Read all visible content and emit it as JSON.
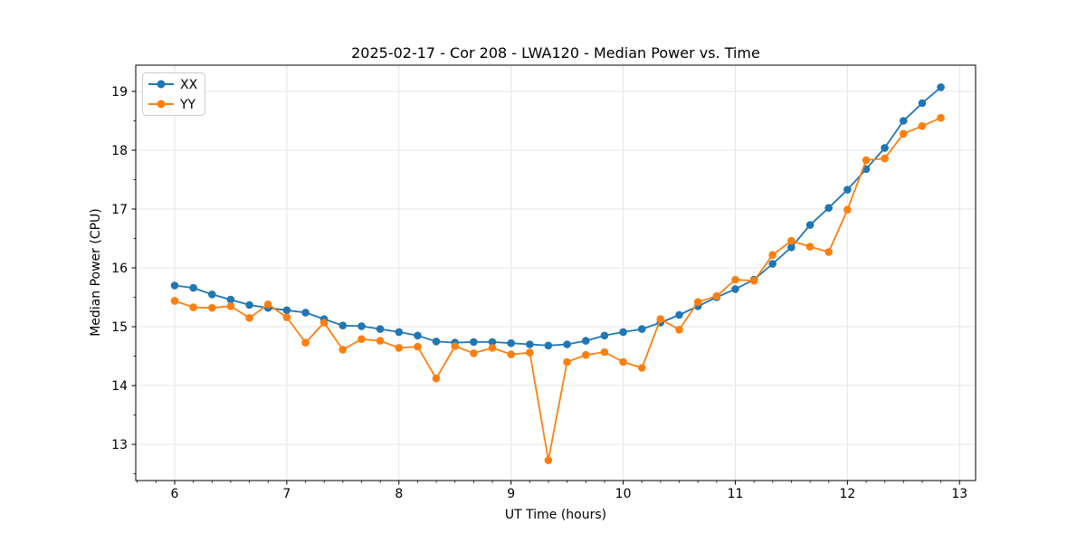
{
  "chart_data": {
    "type": "line",
    "title": "2025-02-17 - Cor 208 - LWA120 - Median Power vs. Time",
    "xlabel": "UT Time (hours)",
    "ylabel": "Median Power (CPU)",
    "xlim": [
      5.653,
      13.143
    ],
    "ylim": [
      12.385,
      19.446
    ],
    "xticks": [
      6,
      7,
      8,
      9,
      10,
      11,
      12,
      13
    ],
    "xtick_labels": [
      "6",
      "7",
      "8",
      "9",
      "10",
      "11",
      "12",
      "13"
    ],
    "yticks": [
      13,
      14,
      15,
      16,
      17,
      18,
      19
    ],
    "ytick_labels": [
      "13",
      "14",
      "15",
      "16",
      "17",
      "18",
      "19"
    ],
    "x_minor_step": 0.16667,
    "y_minor_step": 0.5,
    "grid": "major-both",
    "grid_color": "#e5e5e5",
    "legend_position": "upper-left",
    "x": [
      6.0,
      6.167,
      6.333,
      6.5,
      6.667,
      6.833,
      7.0,
      7.167,
      7.333,
      7.5,
      7.667,
      7.833,
      8.0,
      8.167,
      8.333,
      8.5,
      8.667,
      8.833,
      9.0,
      9.167,
      9.333,
      9.5,
      9.667,
      9.833,
      10.0,
      10.167,
      10.333,
      10.5,
      10.667,
      10.833,
      11.0,
      11.167,
      11.333,
      11.5,
      11.667,
      11.833,
      12.0,
      12.167,
      12.333,
      12.5,
      12.667,
      12.833
    ],
    "series": [
      {
        "name": "XX",
        "color": "#1f77b4",
        "marker": "circle",
        "values": [
          15.7,
          15.66,
          15.55,
          15.46,
          15.37,
          15.32,
          15.28,
          15.24,
          15.13,
          15.02,
          15.01,
          14.96,
          14.91,
          14.85,
          14.75,
          14.73,
          14.74,
          14.74,
          14.72,
          14.7,
          14.68,
          14.7,
          14.76,
          14.85,
          14.91,
          14.96,
          15.07,
          15.2,
          15.35,
          15.5,
          15.64,
          15.8,
          16.07,
          16.35,
          16.73,
          17.02,
          17.33,
          17.68,
          18.04,
          18.5,
          18.8,
          19.07
        ]
      },
      {
        "name": "YY",
        "color": "#ff7f0e",
        "marker": "circle",
        "values": [
          15.44,
          15.33,
          15.32,
          15.35,
          15.15,
          15.38,
          15.16,
          14.73,
          15.07,
          14.61,
          14.79,
          14.76,
          14.64,
          14.66,
          14.12,
          14.67,
          14.55,
          14.64,
          14.53,
          14.56,
          12.73,
          14.4,
          14.52,
          14.57,
          14.4,
          14.3,
          15.13,
          14.95,
          15.42,
          15.52,
          15.8,
          15.78,
          16.22,
          16.46,
          16.36,
          16.27,
          16.99,
          17.83,
          17.86,
          18.28,
          18.41,
          18.55
        ]
      }
    ]
  }
}
